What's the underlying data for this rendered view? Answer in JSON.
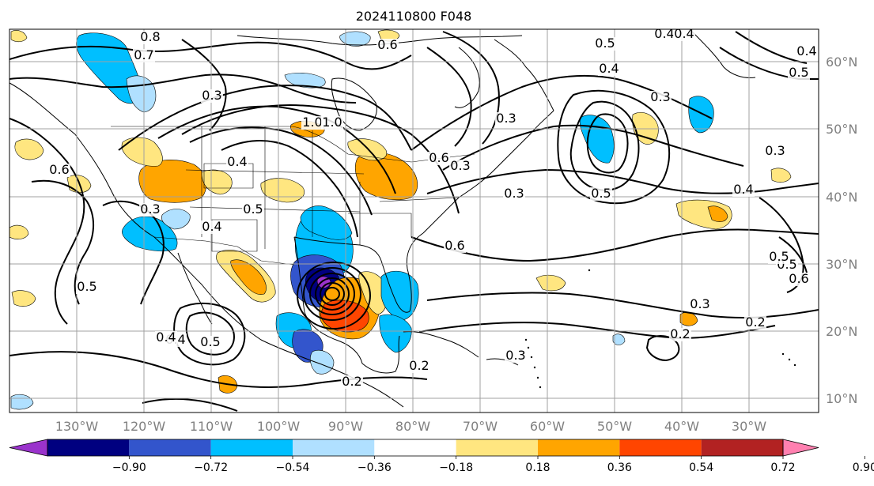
{
  "title": "2024110800 F048",
  "map": {
    "lon_labels": [
      "130°W",
      "120°W",
      "110°W",
      "100°W",
      "90°W",
      "80°W",
      "70°W",
      "60°W",
      "50°W",
      "40°W",
      "30°W"
    ],
    "lat_labels": [
      "60°N",
      "50°N",
      "40°N",
      "30°N",
      "20°N",
      "10°N"
    ],
    "grid": true
  },
  "colorbar": {
    "tick_labels": [
      "−0.90",
      "−0.72",
      "−0.54",
      "−0.36",
      "−0.18",
      "0.18",
      "0.36",
      "0.54",
      "0.72",
      "0.90"
    ],
    "colors": [
      "#9a33cc",
      "#000080",
      "#3355cc",
      "#00bfff",
      "#b0e0ff",
      "#ffffff",
      "#ffe680",
      "#ffa500",
      "#ff4500",
      "#b22222",
      "#ff80b0"
    ],
    "extend": "both"
  },
  "contour_labels": [
    "0.7",
    "0.8",
    "0.6",
    "0.5",
    "0.4",
    "0.3",
    "0.4",
    "1.0",
    "0.4",
    "0.6",
    "0.5",
    "0.3",
    "0.4",
    "0.5",
    "0.3",
    "0.6",
    "0.3",
    "0.3",
    "0.5",
    "0.3",
    "0.6",
    "0.5",
    "0.4",
    "0.5",
    "0.4",
    "0.2",
    "0.2",
    "0.5",
    "0.6",
    "0.3",
    "0.3",
    "0.5",
    "0.4",
    "0.2",
    "0.2",
    "1.0",
    "0.4",
    "0.4",
    "0.3"
  ]
}
